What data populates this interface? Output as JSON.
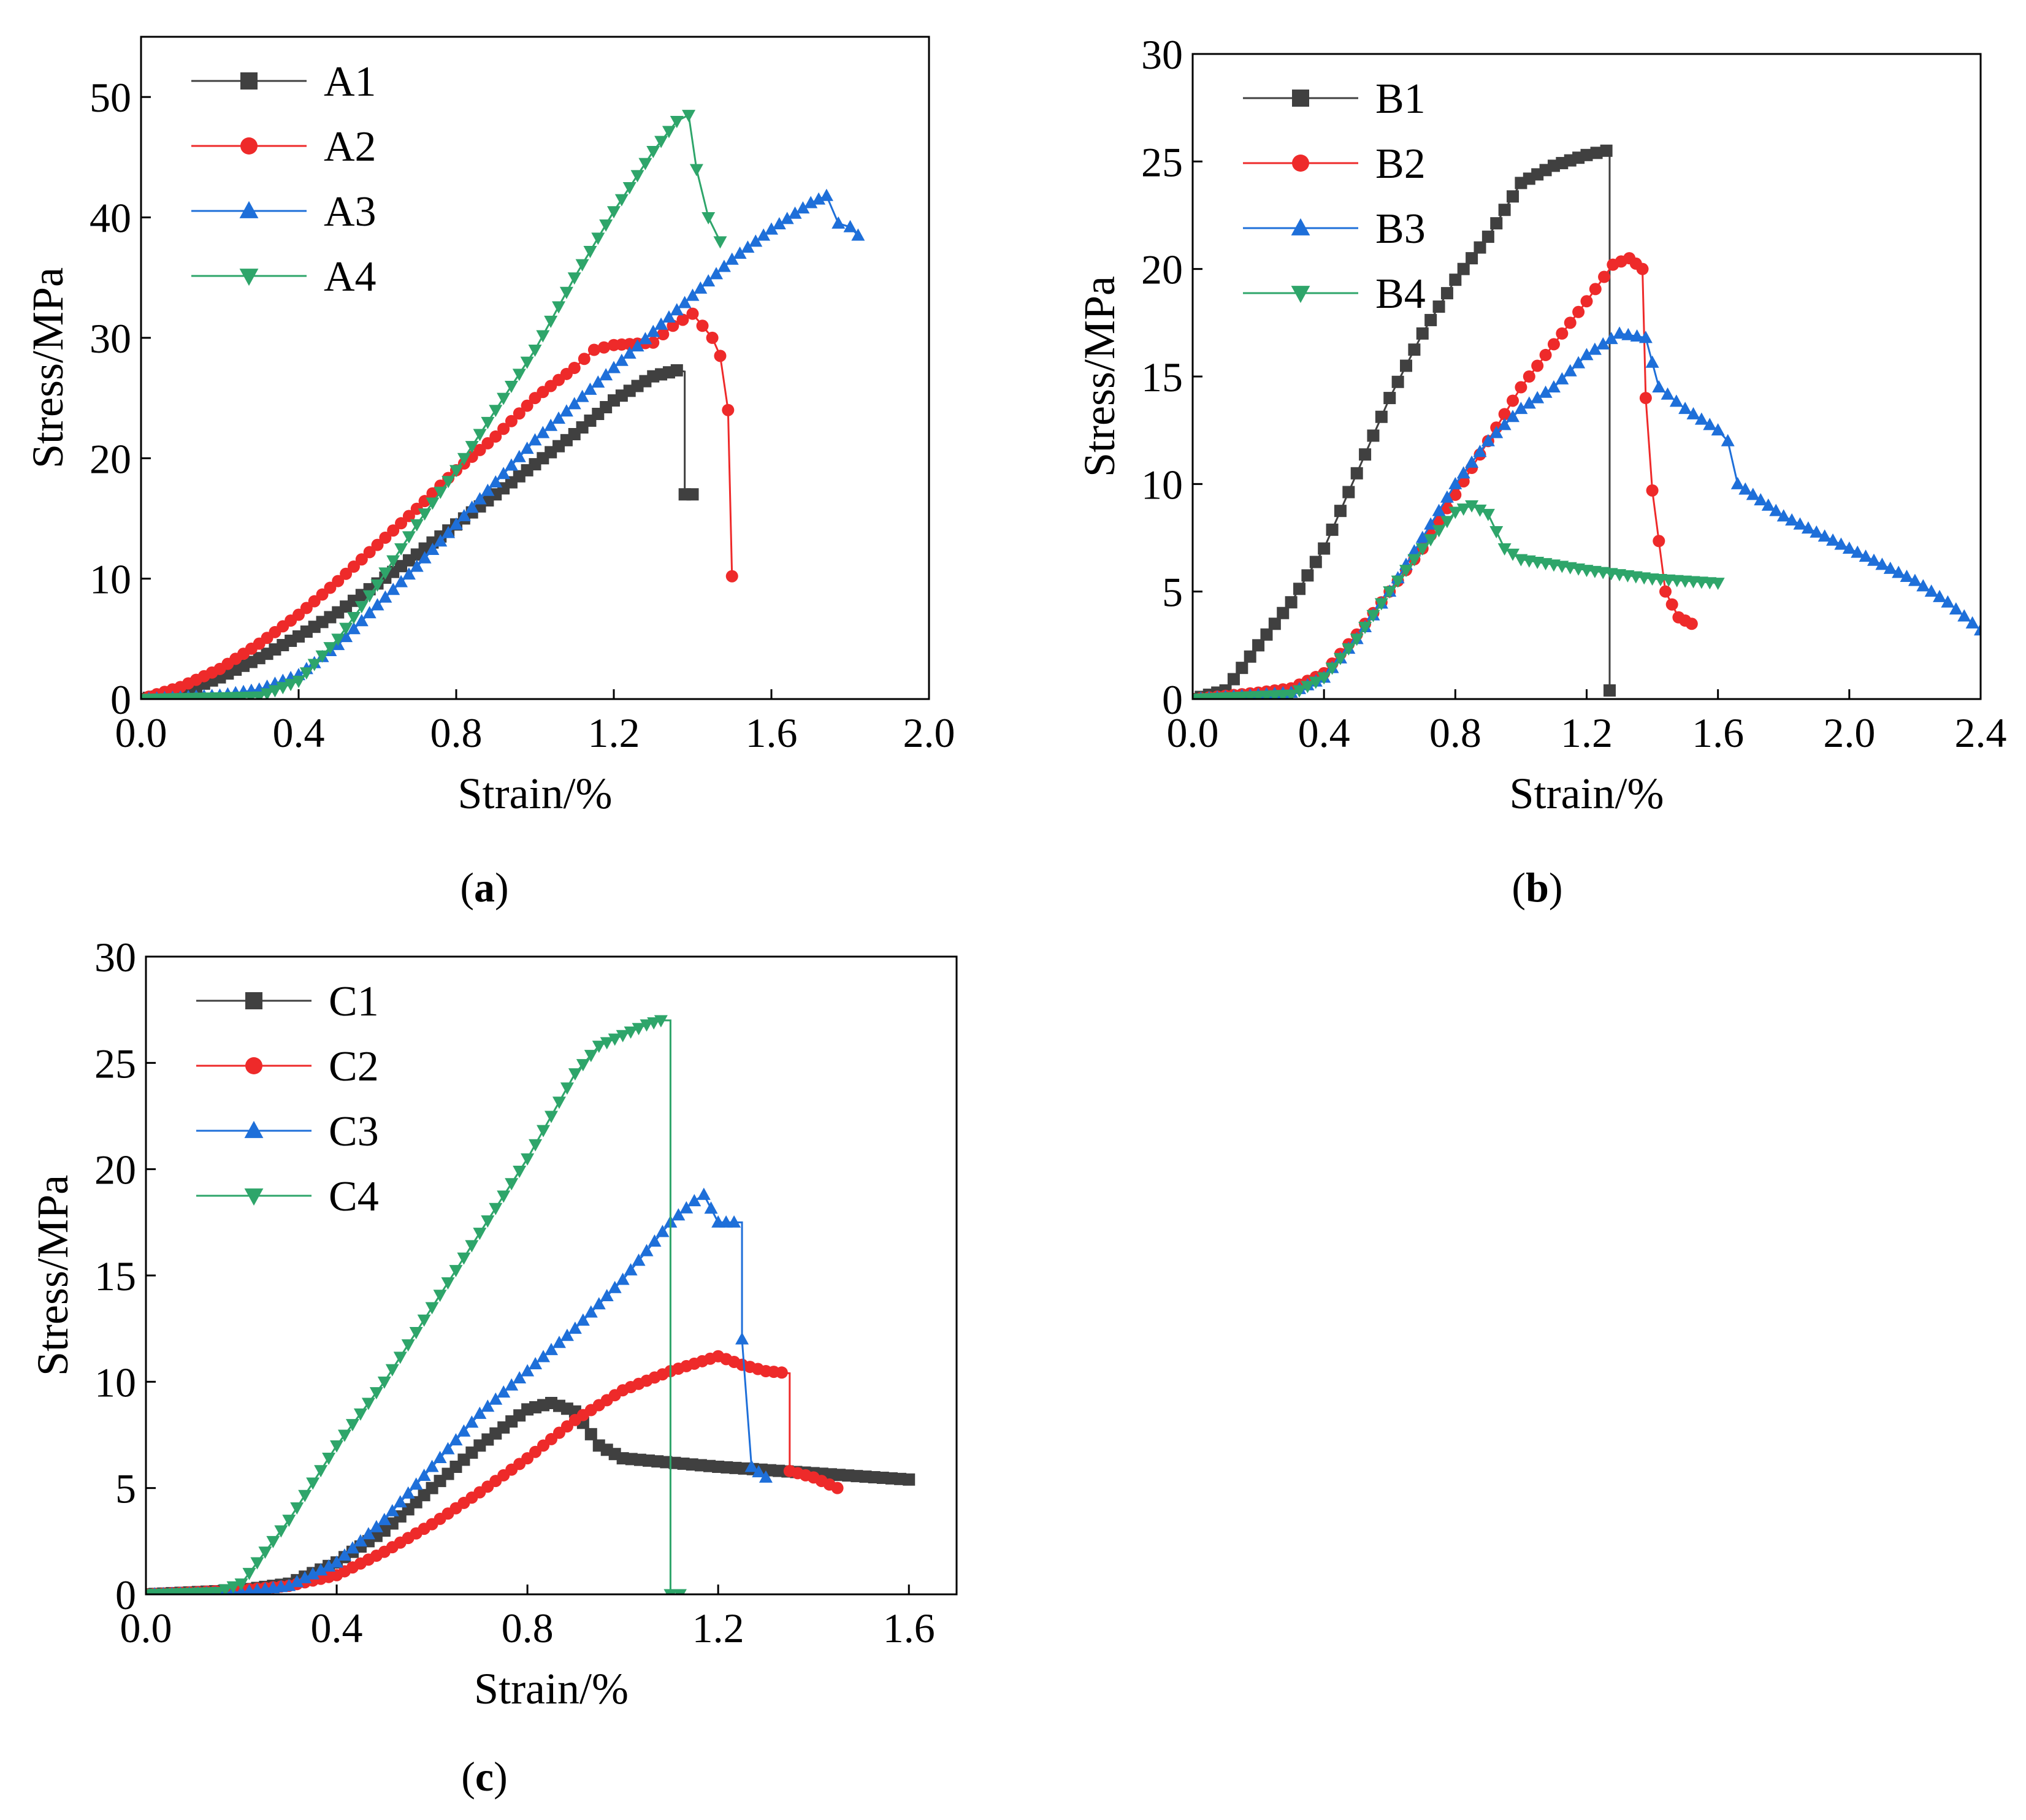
{
  "colors": {
    "black": "#404040",
    "red": "#ee2a2a",
    "blue": "#1e6fd9",
    "green": "#2ea56a"
  },
  "chart_data": [
    {
      "id": "a",
      "type": "line",
      "caption_letter": "a",
      "xlabel": "Strain/%",
      "ylabel": "Stress/MPa",
      "xlim": [
        0,
        2.0
      ],
      "ylim": [
        0,
        55
      ],
      "xticks": [
        0,
        0.4,
        0.8,
        1.2,
        1.6,
        2.0
      ],
      "xtick_labels": [
        "0.0",
        "0.4",
        "0.8",
        "1.2",
        "1.6",
        "2.0"
      ],
      "yticks": [
        0,
        10,
        20,
        30,
        40,
        50
      ],
      "ytick_labels": [
        "0",
        "10",
        "20",
        "30",
        "40",
        "50"
      ],
      "legend": "top-left",
      "series": [
        {
          "name": "A1",
          "color": "black",
          "marker": "square",
          "x": [
            0.0,
            0.1,
            0.2,
            0.3,
            0.4,
            0.5,
            0.6,
            0.7,
            0.8,
            0.9,
            1.0,
            1.1,
            1.2,
            1.3,
            1.36,
            1.38,
            1.38,
            1.4
          ],
          "y": [
            0.0,
            0.5,
            1.8,
            3.4,
            5.2,
            7.2,
            9.6,
            12.0,
            14.5,
            17.0,
            19.5,
            22.0,
            24.8,
            26.8,
            27.3,
            27.2,
            17.0,
            17.0
          ]
        },
        {
          "name": "A2",
          "color": "red",
          "marker": "circle",
          "x": [
            0.0,
            0.1,
            0.2,
            0.3,
            0.4,
            0.5,
            0.6,
            0.7,
            0.8,
            0.9,
            1.0,
            1.1,
            1.15,
            1.2,
            1.3,
            1.35,
            1.4,
            1.45,
            1.47,
            1.49,
            1.5
          ],
          "y": [
            0.0,
            1.0,
            2.5,
            4.6,
            7.0,
            9.8,
            12.8,
            15.8,
            19.0,
            21.8,
            25.0,
            27.5,
            29.0,
            29.4,
            29.6,
            31.0,
            32.0,
            30.0,
            28.5,
            24.0,
            10.2
          ]
        },
        {
          "name": "A3",
          "color": "blue",
          "marker": "triangle-up",
          "x": [
            0.0,
            0.2,
            0.3,
            0.4,
            0.5,
            0.6,
            0.7,
            0.8,
            0.9,
            1.0,
            1.1,
            1.2,
            1.3,
            1.4,
            1.5,
            1.6,
            1.7,
            1.74,
            1.77,
            1.8,
            1.82
          ],
          "y": [
            0.0,
            0.3,
            0.8,
            2.0,
            4.5,
            7.8,
            11.0,
            14.5,
            18.0,
            21.5,
            24.5,
            27.5,
            30.5,
            33.5,
            36.5,
            39.0,
            41.2,
            41.8,
            39.5,
            39.2,
            38.5
          ]
        },
        {
          "name": "A4",
          "color": "green",
          "marker": "triangle-down",
          "x": [
            0.0,
            0.3,
            0.4,
            0.5,
            0.6,
            0.7,
            0.8,
            0.9,
            1.0,
            1.1,
            1.2,
            1.3,
            1.36,
            1.39,
            1.41,
            1.44,
            1.47
          ],
          "y": [
            0.0,
            0.2,
            1.5,
            5.0,
            9.5,
            14.5,
            19.0,
            24.0,
            29.0,
            35.0,
            40.5,
            45.5,
            48.0,
            48.5,
            44.0,
            40.0,
            38.0
          ]
        }
      ]
    },
    {
      "id": "b",
      "type": "line",
      "caption_letter": "b",
      "xlabel": "Strain/%",
      "ylabel": "Stress/MPa",
      "xlim": [
        0,
        2.4
      ],
      "ylim": [
        0,
        30
      ],
      "xticks": [
        0,
        0.4,
        0.8,
        1.2,
        1.6,
        2.0,
        2.4
      ],
      "xtick_labels": [
        "0.0",
        "0.4",
        "0.8",
        "1.2",
        "1.6",
        "2.0",
        "2.4"
      ],
      "yticks": [
        0,
        5,
        10,
        15,
        20,
        25,
        30
      ],
      "ytick_labels": [
        "0",
        "5",
        "10",
        "15",
        "20",
        "25",
        "30"
      ],
      "legend": "top-left",
      "series": [
        {
          "name": "B1",
          "color": "black",
          "marker": "square",
          "x": [
            0.0,
            0.1,
            0.2,
            0.3,
            0.4,
            0.5,
            0.6,
            0.7,
            0.8,
            0.9,
            1.0,
            1.1,
            1.2,
            1.26,
            1.27,
            1.27
          ],
          "y": [
            0.0,
            0.4,
            2.5,
            4.5,
            7.0,
            10.5,
            14.0,
            17.0,
            19.5,
            21.5,
            24.0,
            24.8,
            25.3,
            25.5,
            25.5,
            0.4
          ]
        },
        {
          "name": "B2",
          "color": "red",
          "marker": "circle",
          "x": [
            0.0,
            0.2,
            0.3,
            0.4,
            0.5,
            0.6,
            0.7,
            0.8,
            0.9,
            1.0,
            1.1,
            1.2,
            1.28,
            1.33,
            1.37,
            1.38,
            1.4,
            1.44,
            1.48,
            1.52
          ],
          "y": [
            0.0,
            0.3,
            0.5,
            1.2,
            3.0,
            5.0,
            7.0,
            9.5,
            12.0,
            14.5,
            16.5,
            18.5,
            20.2,
            20.5,
            20.0,
            14.0,
            9.7,
            5.0,
            3.8,
            3.5
          ]
        },
        {
          "name": "B3",
          "color": "blue",
          "marker": "triangle-up",
          "x": [
            0.0,
            0.3,
            0.4,
            0.5,
            0.6,
            0.7,
            0.8,
            0.9,
            1.0,
            1.1,
            1.2,
            1.3,
            1.38,
            1.42,
            1.5,
            1.6,
            1.63,
            1.66,
            1.8,
            2.0,
            2.2,
            2.3,
            2.4
          ],
          "y": [
            0.0,
            0.3,
            1.0,
            2.8,
            5.0,
            7.5,
            10.0,
            12.0,
            13.5,
            14.5,
            16.0,
            17.0,
            16.8,
            14.5,
            13.5,
            12.5,
            12.0,
            10.0,
            8.5,
            7.0,
            5.5,
            4.5,
            3.2
          ]
        },
        {
          "name": "B4",
          "color": "green",
          "marker": "triangle-down",
          "x": [
            0.0,
            0.3,
            0.4,
            0.5,
            0.6,
            0.7,
            0.8,
            0.85,
            0.9,
            0.95,
            1.0,
            1.2,
            1.4,
            1.6
          ],
          "y": [
            0.0,
            0.2,
            1.0,
            2.8,
            5.0,
            7.0,
            8.7,
            9.0,
            8.6,
            7.0,
            6.5,
            6.0,
            5.6,
            5.4
          ]
        }
      ]
    },
    {
      "id": "c",
      "type": "line",
      "caption_letter": "c",
      "xlabel": "Strain/%",
      "ylabel": "Stress/MPa",
      "xlim": [
        0,
        1.7
      ],
      "ylim": [
        0,
        30
      ],
      "xticks": [
        0,
        0.4,
        0.8,
        1.2,
        1.6
      ],
      "xtick_labels": [
        "0.0",
        "0.4",
        "0.8",
        "1.2",
        "1.6"
      ],
      "yticks": [
        0,
        5,
        10,
        15,
        20,
        25,
        30
      ],
      "ytick_labels": [
        "0",
        "5",
        "10",
        "15",
        "20",
        "25",
        "30"
      ],
      "legend": "top-left",
      "series": [
        {
          "name": "C1",
          "color": "black",
          "marker": "square",
          "x": [
            0.0,
            0.2,
            0.3,
            0.4,
            0.5,
            0.6,
            0.7,
            0.8,
            0.85,
            0.9,
            0.95,
            1.0,
            1.2,
            1.4,
            1.6
          ],
          "y": [
            0.0,
            0.2,
            0.5,
            1.5,
            3.0,
            5.0,
            7.0,
            8.7,
            9.0,
            8.6,
            7.0,
            6.4,
            6.0,
            5.7,
            5.4
          ]
        },
        {
          "name": "C2",
          "color": "red",
          "marker": "circle",
          "x": [
            0.0,
            0.2,
            0.3,
            0.4,
            0.5,
            0.6,
            0.7,
            0.8,
            0.9,
            1.0,
            1.1,
            1.2,
            1.25,
            1.3,
            1.35,
            1.35,
            1.4,
            1.45
          ],
          "y": [
            0.0,
            0.2,
            0.4,
            0.9,
            2.0,
            3.3,
            4.8,
            6.4,
            8.2,
            9.6,
            10.5,
            11.2,
            10.8,
            10.5,
            10.4,
            5.8,
            5.5,
            5.0
          ]
        },
        {
          "name": "C3",
          "color": "blue",
          "marker": "triangle-up",
          "x": [
            0.0,
            0.2,
            0.3,
            0.4,
            0.5,
            0.6,
            0.7,
            0.8,
            0.9,
            1.0,
            1.1,
            1.15,
            1.17,
            1.2,
            1.25,
            1.25,
            1.27,
            1.3
          ],
          "y": [
            0.0,
            0.1,
            0.4,
            1.5,
            3.5,
            6.0,
            8.5,
            10.5,
            12.5,
            14.8,
            17.5,
            18.5,
            18.8,
            17.5,
            17.5,
            12.0,
            6.0,
            5.5
          ]
        },
        {
          "name": "C4",
          "color": "green",
          "marker": "triangle-down",
          "x": [
            0.0,
            0.15,
            0.2,
            0.3,
            0.4,
            0.5,
            0.6,
            0.7,
            0.8,
            0.9,
            0.95,
            1.0,
            1.05,
            1.08,
            1.1,
            1.1,
            1.12
          ],
          "y": [
            0.0,
            0.1,
            0.5,
            3.5,
            7.0,
            10.0,
            13.5,
            17.0,
            20.5,
            24.5,
            25.8,
            26.3,
            26.8,
            27.0,
            27.0,
            0.0,
            0.0
          ]
        }
      ]
    }
  ]
}
